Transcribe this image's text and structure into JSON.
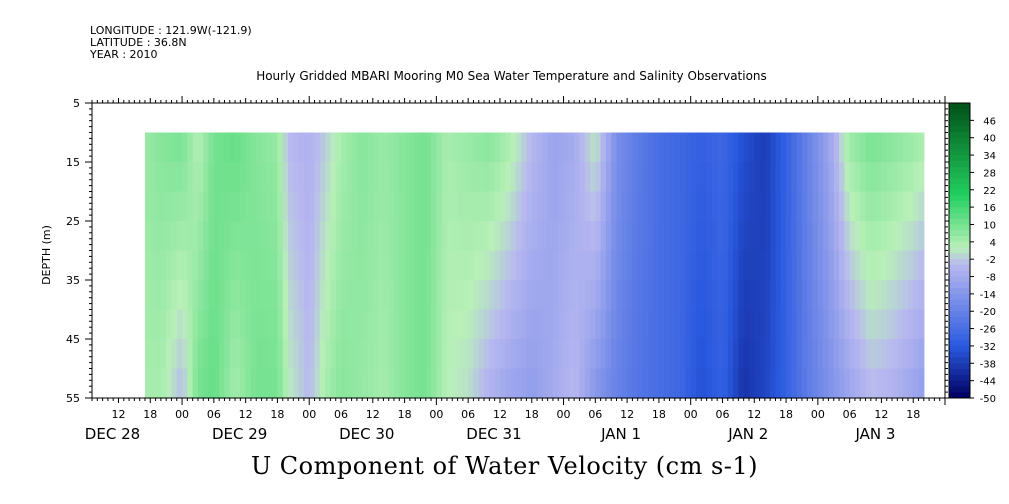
{
  "header": {
    "longitude": "LONGITUDE : 121.9W(-121.9)",
    "latitude": "LATITUDE : 36.8N",
    "year": "YEAR : 2010",
    "title": "Hourly Gridded MBARI Mooring M0 Sea Water Temperature and Salinity Observations",
    "variable": "U Component of Water Velocity (cm s-1)"
  },
  "colors": {
    "max": "#005018",
    "green": "#22d060",
    "pale_green": "#b8f0b8",
    "pale_blue": "#b8b8f0",
    "blue": "#2a5ae0",
    "min": "#000060"
  },
  "chart_data": {
    "type": "heatmap",
    "title": "Hourly Gridded MBARI Mooring M0 Sea Water Temperature and Salinity Observations",
    "subtitle": "U Component of Water Velocity (cm s-1)",
    "ylabel": "DEPTH (m)",
    "xlabel": "",
    "y_reversed": true,
    "ylim": [
      5,
      55
    ],
    "y_ticks": [
      5,
      15,
      25,
      35,
      45,
      55
    ],
    "data_depth_range": [
      10,
      55
    ],
    "x_range_hours": [
      "DEC 28 07:00",
      "JAN 3 24:00"
    ],
    "hour_tick_labels": [
      "12",
      "18",
      "00",
      "06",
      "12",
      "18",
      "00",
      "06",
      "12",
      "18",
      "00",
      "06",
      "12",
      "18",
      "00",
      "06",
      "12",
      "18",
      "00",
      "06",
      "12",
      "18",
      "00",
      "06",
      "12",
      "18",
      "00",
      "06",
      "12",
      "18",
      "00",
      "06",
      "12",
      "18"
    ],
    "day_labels": [
      "DEC 28",
      "DEC 29",
      "DEC 30",
      "DEC 31",
      "JAN  1",
      "JAN  2",
      "JAN  3"
    ],
    "colorbar_labels": [
      "46",
      "40",
      "34",
      "28",
      "22",
      "16",
      "10",
      "4",
      "-2",
      "-8",
      "-14",
      "-20",
      "-26",
      "-32",
      "-38",
      "-44",
      "-50"
    ],
    "colorbar_range": [
      -50,
      52
    ],
    "time_series": {
      "hours_from_dec28_00": [
        17,
        20,
        24,
        27,
        30,
        34,
        38,
        42,
        44,
        48,
        51,
        54,
        58,
        62,
        66,
        70,
        74,
        78,
        82,
        86,
        90,
        94,
        98,
        102,
        106,
        110,
        114,
        118,
        122,
        126,
        130,
        134,
        138,
        142,
        146,
        150,
        154,
        158,
        162,
        164
      ],
      "u_cm_s_surface": [
        6,
        8,
        10,
        2,
        10,
        12,
        8,
        6,
        -4,
        -6,
        -2,
        4,
        8,
        6,
        8,
        10,
        4,
        6,
        8,
        4,
        -4,
        -10,
        -8,
        2,
        -16,
        -22,
        -26,
        -28,
        -30,
        -28,
        -34,
        -38,
        -30,
        -20,
        -10,
        6,
        10,
        8,
        6,
        4
      ],
      "u_cm_s_bottom": [
        4,
        4,
        -4,
        10,
        12,
        4,
        10,
        10,
        2,
        -4,
        4,
        8,
        6,
        4,
        8,
        10,
        2,
        0,
        -6,
        -10,
        -12,
        -8,
        -4,
        -14,
        -20,
        -24,
        -26,
        -28,
        -34,
        -30,
        -40,
        -36,
        -30,
        -22,
        -16,
        -10,
        -4,
        -6,
        -10,
        -12
      ]
    }
  }
}
